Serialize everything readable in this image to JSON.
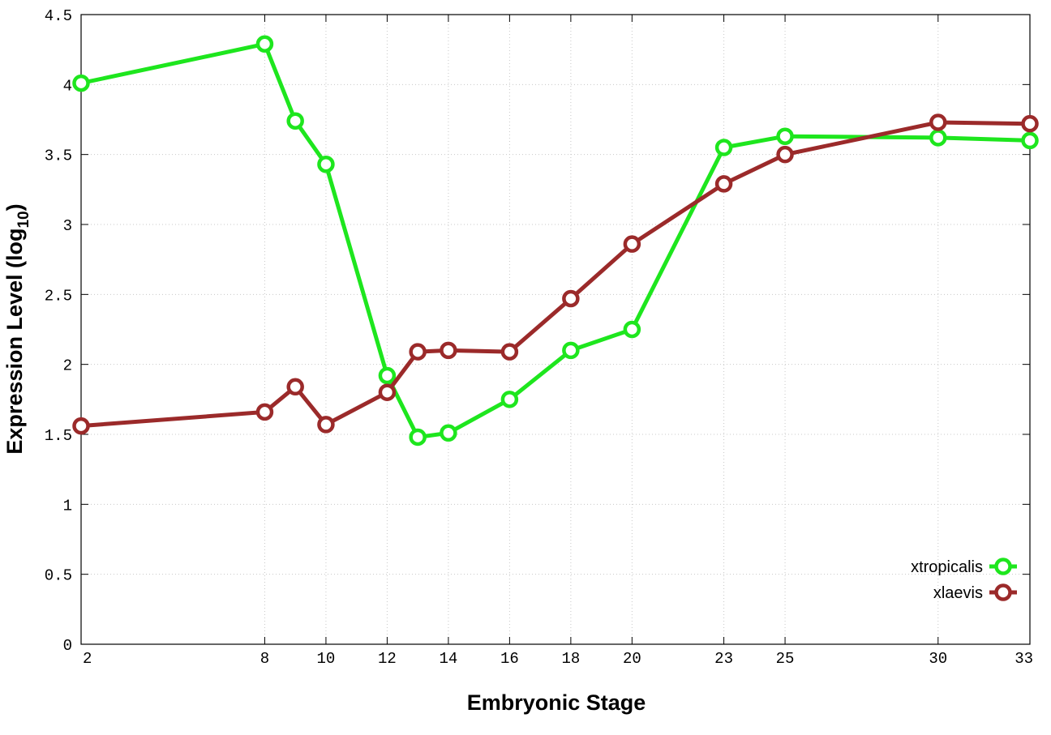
{
  "chart_data": {
    "type": "line",
    "title": "",
    "xlabel": "Embryonic Stage",
    "ylabel": "Expression Level (log",
    "ylabel_subscript": "10",
    "ylabel_suffix": ")",
    "xlim": [
      2,
      33
    ],
    "ylim": [
      0,
      4.5
    ],
    "x_ticks": [
      2,
      8,
      10,
      12,
      14,
      16,
      18,
      20,
      23,
      25,
      30,
      33
    ],
    "y_ticks": [
      0,
      0.5,
      1,
      1.5,
      2,
      2.5,
      3,
      3.5,
      4,
      4.5
    ],
    "grid": true,
    "legend_position": "bottom-right",
    "series": [
      {
        "name": "xtropicalis",
        "color": "#1ee61e",
        "x": [
          2,
          8,
          9,
          10,
          12,
          13,
          14,
          16,
          18,
          20,
          23,
          25,
          30,
          33
        ],
        "values": [
          4.01,
          4.29,
          3.74,
          3.43,
          1.92,
          1.48,
          1.51,
          1.75,
          2.1,
          2.25,
          3.55,
          3.63,
          3.62,
          3.6
        ]
      },
      {
        "name": "xlaevis",
        "color": "#9b2a2a",
        "x": [
          2,
          8,
          9,
          10,
          12,
          13,
          14,
          16,
          18,
          20,
          23,
          25,
          30,
          33
        ],
        "values": [
          1.56,
          1.66,
          1.84,
          1.57,
          1.8,
          2.09,
          2.1,
          2.09,
          2.47,
          2.86,
          3.29,
          3.5,
          3.73,
          3.72
        ]
      }
    ]
  }
}
